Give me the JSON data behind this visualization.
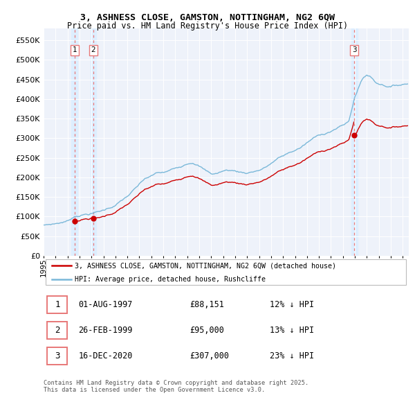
{
  "title_line1": "3, ASHNESS CLOSE, GAMSTON, NOTTINGHAM, NG2 6QW",
  "title_line2": "Price paid vs. HM Land Registry's House Price Index (HPI)",
  "xlim_start": 1995.0,
  "xlim_end": 2025.5,
  "ylim_min": 0,
  "ylim_max": 580000,
  "yticks": [
    0,
    50000,
    100000,
    150000,
    200000,
    250000,
    300000,
    350000,
    400000,
    450000,
    500000,
    550000
  ],
  "ytick_labels": [
    "£0",
    "£50K",
    "£100K",
    "£150K",
    "£200K",
    "£250K",
    "£300K",
    "£350K",
    "£400K",
    "£450K",
    "£500K",
    "£550K"
  ],
  "xticks": [
    1995,
    1996,
    1997,
    1998,
    1999,
    2000,
    2001,
    2002,
    2003,
    2004,
    2005,
    2006,
    2007,
    2008,
    2009,
    2010,
    2011,
    2012,
    2013,
    2014,
    2015,
    2016,
    2017,
    2018,
    2019,
    2020,
    2021,
    2022,
    2023,
    2024,
    2025
  ],
  "sale_dates_decimal": [
    1997.583,
    1999.154,
    2020.958
  ],
  "sale_prices": [
    88151,
    95000,
    307000
  ],
  "sale_labels": [
    "1",
    "2",
    "3"
  ],
  "hpi_color": "#7ab8d9",
  "price_color": "#cc0000",
  "vline_color": "#e87878",
  "highlight_color": "#ddeeff",
  "background_color": "#eef2fa",
  "legend_label_price": "3, ASHNESS CLOSE, GAMSTON, NOTTINGHAM, NG2 6QW (detached house)",
  "legend_label_hpi": "HPI: Average price, detached house, Rushcliffe",
  "table_data": [
    [
      "1",
      "01-AUG-1997",
      "£88,151",
      "12% ↓ HPI"
    ],
    [
      "2",
      "26-FEB-1999",
      "£95,000",
      "13% ↓ HPI"
    ],
    [
      "3",
      "16-DEC-2020",
      "£307,000",
      "23% ↓ HPI"
    ]
  ],
  "footnote": "Contains HM Land Registry data © Crown copyright and database right 2025.\nThis data is licensed under the Open Government Licence v3.0.",
  "hpi_base_points": [
    [
      1995.0,
      78000
    ],
    [
      1996.0,
      82000
    ],
    [
      1997.0,
      88000
    ],
    [
      1997.583,
      100500
    ],
    [
      1998.0,
      104000
    ],
    [
      1999.0,
      109000
    ],
    [
      1999.154,
      109200
    ],
    [
      2000.0,
      116000
    ],
    [
      2001.0,
      130000
    ],
    [
      2002.0,
      152000
    ],
    [
      2003.0,
      180000
    ],
    [
      2003.5,
      195000
    ],
    [
      2004.0,
      200000
    ],
    [
      2004.5,
      208000
    ],
    [
      2005.0,
      208000
    ],
    [
      2005.5,
      212000
    ],
    [
      2006.0,
      218000
    ],
    [
      2006.5,
      225000
    ],
    [
      2007.0,
      235000
    ],
    [
      2007.5,
      240000
    ],
    [
      2008.0,
      232000
    ],
    [
      2008.5,
      220000
    ],
    [
      2009.0,
      210000
    ],
    [
      2009.5,
      212000
    ],
    [
      2010.0,
      218000
    ],
    [
      2010.5,
      220000
    ],
    [
      2011.0,
      218000
    ],
    [
      2011.5,
      215000
    ],
    [
      2012.0,
      214000
    ],
    [
      2012.5,
      218000
    ],
    [
      2013.0,
      222000
    ],
    [
      2013.5,
      228000
    ],
    [
      2014.0,
      238000
    ],
    [
      2014.5,
      248000
    ],
    [
      2015.0,
      255000
    ],
    [
      2015.5,
      262000
    ],
    [
      2016.0,
      268000
    ],
    [
      2016.5,
      275000
    ],
    [
      2017.0,
      285000
    ],
    [
      2017.5,
      295000
    ],
    [
      2018.0,
      302000
    ],
    [
      2018.5,
      308000
    ],
    [
      2019.0,
      315000
    ],
    [
      2019.5,
      322000
    ],
    [
      2020.0,
      328000
    ],
    [
      2020.5,
      338000
    ],
    [
      2020.958,
      398000
    ],
    [
      2021.0,
      402000
    ],
    [
      2021.25,
      420000
    ],
    [
      2021.5,
      440000
    ],
    [
      2021.75,
      452000
    ],
    [
      2022.0,
      458000
    ],
    [
      2022.25,
      455000
    ],
    [
      2022.5,
      448000
    ],
    [
      2022.75,
      440000
    ],
    [
      2023.0,
      438000
    ],
    [
      2023.5,
      435000
    ],
    [
      2024.0,
      432000
    ],
    [
      2024.5,
      435000
    ],
    [
      2025.0,
      438000
    ],
    [
      2025.4,
      440000
    ]
  ],
  "discount_pct": [
    0.12,
    0.13,
    0.23
  ]
}
